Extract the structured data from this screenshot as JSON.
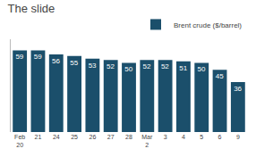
{
  "chart_data": {
    "type": "bar",
    "title": "The slide",
    "categories": [
      "Feb\n20",
      "21",
      "24",
      "25",
      "26",
      "27",
      "28",
      "Mar\n2",
      "3",
      "4",
      "5",
      "6",
      "9"
    ],
    "series": [
      {
        "name": "Brent crude ($/barrel)",
        "color": "#1b4f6b",
        "values": [
          59,
          59,
          56,
          55,
          53,
          52,
          50,
          52,
          52,
          51,
          50,
          45,
          36
        ]
      }
    ],
    "ylim": [
      0,
      67
    ],
    "grid": false,
    "legend": "upper right",
    "data_labels": true,
    "tick_labels": "x"
  }
}
